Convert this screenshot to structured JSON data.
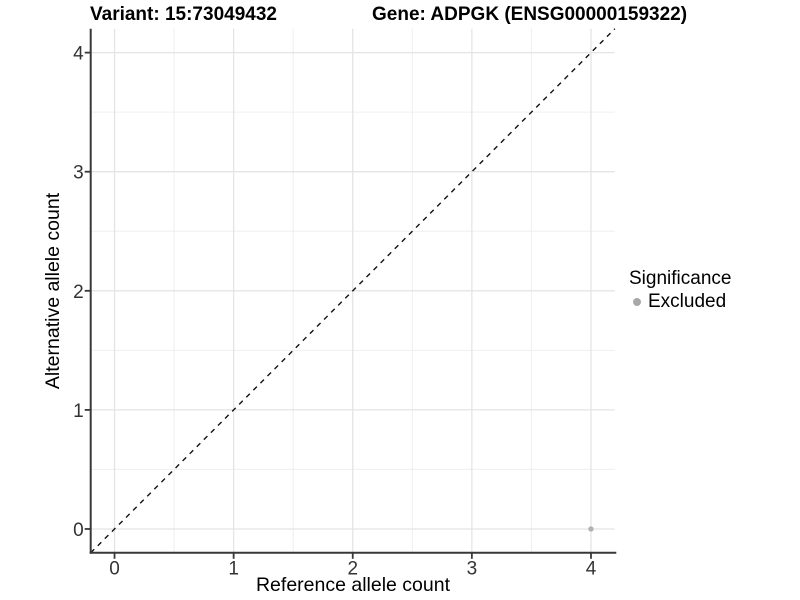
{
  "chart_data": {
    "type": "scatter",
    "title_left": "Variant: 15:73049432",
    "title_right": "Gene: ADPGK (ENSG00000159322)",
    "xlabel": "Reference allele count",
    "ylabel": "Alternative allele count",
    "xlim": [
      -0.2,
      4.2
    ],
    "ylim": [
      -0.2,
      4.2
    ],
    "x_ticks": [
      0,
      1,
      2,
      3,
      4
    ],
    "y_ticks": [
      0,
      1,
      2,
      3,
      4
    ],
    "minor_grid_step": 0.5,
    "grid": "on",
    "identity_line": {
      "slope": 1,
      "intercept": 0,
      "style": "dashed"
    },
    "series": [
      {
        "name": "Excluded",
        "points": [
          {
            "x": 4,
            "y": 0
          }
        ]
      }
    ],
    "legend": {
      "title": "Significance",
      "position": "right",
      "entries": [
        "Excluded"
      ]
    }
  },
  "colors": {
    "excluded_point": "#b2b2b2",
    "legend_dot": "#a8a8a8",
    "grid_major": "#e4e4e4",
    "grid_minor": "#efefef",
    "axis_line": "#383838",
    "tick_label": "#333333",
    "identity_line": "#111111",
    "title_text": "#000000",
    "background": "#ffffff"
  }
}
